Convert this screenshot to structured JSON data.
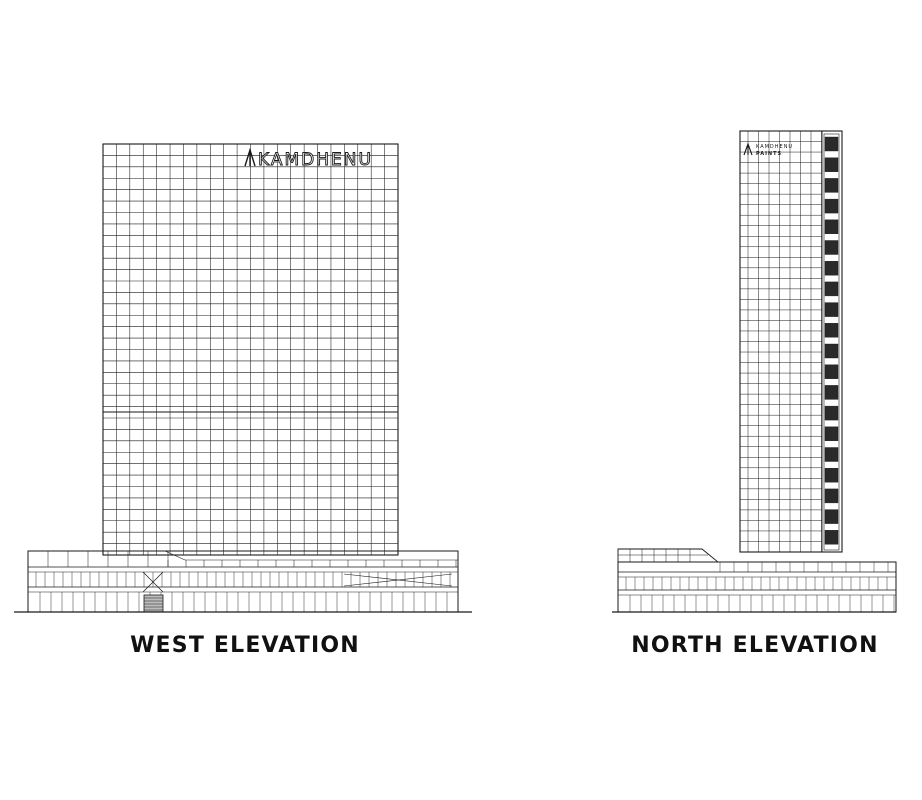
{
  "west_elevation": {
    "caption": "WEST ELEVATION",
    "signage": "KAMDHENU"
  },
  "north_elevation": {
    "caption": "NORTH ELEVATION",
    "signage_line1": "KAMDHENU",
    "signage_line2": "PAINTS"
  },
  "colors": {
    "line": "#1a1a1a",
    "band": "#2a2a2a",
    "paper": "#ffffff"
  }
}
